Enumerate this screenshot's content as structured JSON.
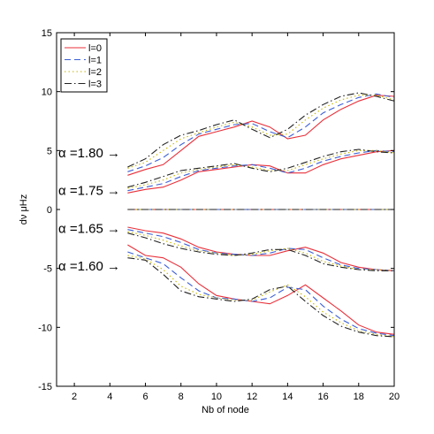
{
  "chart_data": {
    "type": "line",
    "title": "",
    "xlabel": "Nb of node",
    "ylabel": "dν μHz",
    "xlim": [
      1,
      20
    ],
    "ylim": [
      -15,
      15
    ],
    "xticks": [
      2,
      4,
      6,
      8,
      10,
      12,
      14,
      16,
      18,
      20
    ],
    "yticks": [
      -15,
      -10,
      -5,
      0,
      5,
      10,
      15
    ],
    "grid": false,
    "legend_position": "top-left",
    "legend": [
      "l=0",
      "l=1",
      "l=2",
      "l=3"
    ],
    "series_styles": [
      {
        "color": "#e8303a",
        "dash": ""
      },
      {
        "color": "#3b5fd6",
        "dash": "7,4"
      },
      {
        "color": "#c8b600",
        "dash": "1.5,3"
      },
      {
        "color": "#222222",
        "dash": "8,3,1.5,3"
      }
    ],
    "x": [
      5,
      6,
      7,
      8,
      9,
      10,
      11,
      12,
      13,
      14,
      15,
      16,
      17,
      18,
      19,
      20
    ],
    "groups": [
      {
        "label": "α =1.80 →",
        "label_y": 4.8,
        "series": [
          [
            2.9,
            3.4,
            3.8,
            5.0,
            6.2,
            6.6,
            7.0,
            7.5,
            7.0,
            6.0,
            6.3,
            7.6,
            8.5,
            9.2,
            9.7,
            9.6
          ],
          [
            3.2,
            3.7,
            4.4,
            5.5,
            6.4,
            6.8,
            7.2,
            7.3,
            6.6,
            6.1,
            7.0,
            8.2,
            8.9,
            9.5,
            9.8,
            9.5
          ],
          [
            3.5,
            4.0,
            5.0,
            6.0,
            6.5,
            7.0,
            7.4,
            7.0,
            6.3,
            6.4,
            7.6,
            8.6,
            9.3,
            9.7,
            9.7,
            9.3
          ],
          [
            3.6,
            4.3,
            5.5,
            6.3,
            6.7,
            7.2,
            7.6,
            6.8,
            6.1,
            6.8,
            8.0,
            8.9,
            9.6,
            9.9,
            9.6,
            9.2
          ]
        ]
      },
      {
        "label": "α =1.75 →",
        "label_y": 1.6,
        "series": [
          [
            1.4,
            1.7,
            1.9,
            2.5,
            3.2,
            3.4,
            3.6,
            3.8,
            3.7,
            3.1,
            3.1,
            3.8,
            4.3,
            4.6,
            4.9,
            5.0
          ],
          [
            1.6,
            1.9,
            2.2,
            2.8,
            3.3,
            3.5,
            3.7,
            3.8,
            3.5,
            3.1,
            3.5,
            4.1,
            4.5,
            4.8,
            5.0,
            4.9
          ],
          [
            1.8,
            2.1,
            2.5,
            3.1,
            3.4,
            3.6,
            3.8,
            3.6,
            3.3,
            3.3,
            3.8,
            4.3,
            4.7,
            5.0,
            5.0,
            4.8
          ],
          [
            1.9,
            2.3,
            2.8,
            3.3,
            3.5,
            3.7,
            3.9,
            3.5,
            3.2,
            3.5,
            4.0,
            4.5,
            4.9,
            5.1,
            4.9,
            4.8
          ]
        ]
      },
      {
        "label": "",
        "label_y": 0,
        "series": [
          [
            0,
            0,
            0,
            0,
            0,
            0,
            0,
            0,
            0,
            0,
            0,
            0,
            0,
            0,
            0,
            0
          ],
          [
            0,
            0,
            0,
            0,
            0,
            0,
            0,
            0,
            0,
            0,
            0,
            0,
            0,
            0,
            0,
            0
          ],
          [
            0,
            0,
            0,
            0,
            0,
            0,
            0,
            0,
            0,
            0,
            0,
            0,
            0,
            0,
            0,
            0
          ],
          [
            0,
            0,
            0,
            0,
            0,
            0,
            0,
            0,
            0,
            0,
            0,
            0,
            0,
            0,
            0,
            0
          ]
        ]
      },
      {
        "label": "α =1.65 →",
        "label_y": -1.6,
        "series": [
          [
            -1.5,
            -1.8,
            -2.0,
            -2.5,
            -3.2,
            -3.6,
            -3.8,
            -3.9,
            -3.9,
            -3.5,
            -3.2,
            -3.7,
            -4.5,
            -4.9,
            -5.1,
            -5.2
          ],
          [
            -1.7,
            -2.0,
            -2.3,
            -2.8,
            -3.4,
            -3.7,
            -3.8,
            -3.9,
            -3.7,
            -3.3,
            -3.4,
            -4.1,
            -4.7,
            -5.0,
            -5.1,
            -5.2
          ],
          [
            -1.9,
            -2.2,
            -2.6,
            -3.1,
            -3.5,
            -3.7,
            -3.9,
            -3.8,
            -3.5,
            -3.3,
            -3.7,
            -4.4,
            -4.8,
            -5.1,
            -5.1,
            -5.2
          ],
          [
            -2.0,
            -2.4,
            -2.9,
            -3.3,
            -3.6,
            -3.8,
            -3.9,
            -3.7,
            -3.4,
            -3.4,
            -3.9,
            -4.6,
            -4.9,
            -5.1,
            -5.2,
            -5.2
          ]
        ]
      },
      {
        "label": "α =1.60 →",
        "label_y": -4.8,
        "series": [
          [
            -3.0,
            -3.9,
            -4.1,
            -4.9,
            -6.3,
            -7.3,
            -7.6,
            -7.8,
            -8.0,
            -7.3,
            -6.4,
            -7.5,
            -8.6,
            -9.8,
            -10.4,
            -10.6
          ],
          [
            -3.6,
            -4.1,
            -4.6,
            -5.8,
            -6.9,
            -7.5,
            -7.6,
            -7.8,
            -7.5,
            -6.6,
            -6.8,
            -8.2,
            -9.3,
            -10.1,
            -10.5,
            -10.7
          ],
          [
            -3.9,
            -4.2,
            -5.1,
            -6.5,
            -7.2,
            -7.5,
            -7.7,
            -7.7,
            -7.0,
            -6.4,
            -7.4,
            -8.7,
            -9.6,
            -10.3,
            -10.6,
            -10.8
          ],
          [
            -4.1,
            -4.3,
            -5.5,
            -6.9,
            -7.4,
            -7.6,
            -7.8,
            -7.6,
            -6.8,
            -6.5,
            -7.8,
            -9.0,
            -9.9,
            -10.4,
            -10.7,
            -10.8
          ]
        ]
      }
    ]
  }
}
